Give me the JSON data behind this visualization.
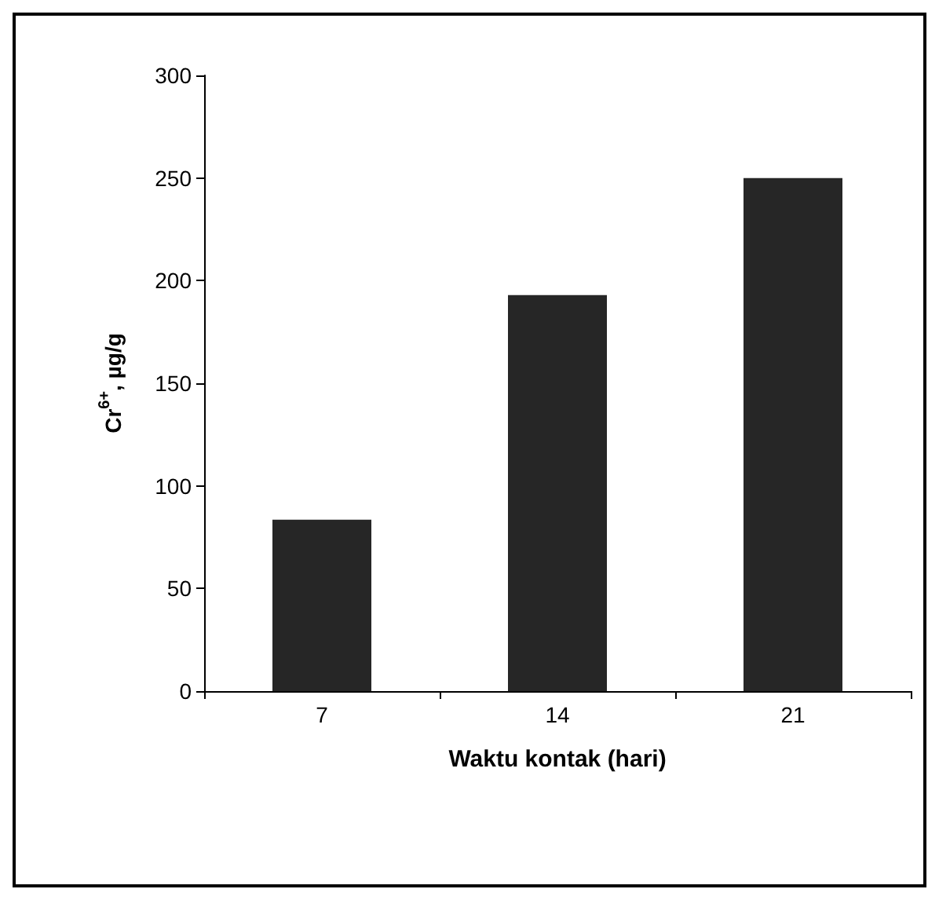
{
  "chart_data": {
    "type": "bar",
    "xlabel": "Waktu kontak (hari)",
    "ylabel": "Cr$^{6+}$, µg/g",
    "categories": [
      "7",
      "14",
      "21"
    ],
    "values": [
      83.5,
      193,
      250
    ],
    "color": "#262626",
    "ylim": [
      0,
      300
    ],
    "yticks": [
      0,
      50,
      100,
      150,
      200,
      250,
      300
    ],
    "grid": false
  }
}
